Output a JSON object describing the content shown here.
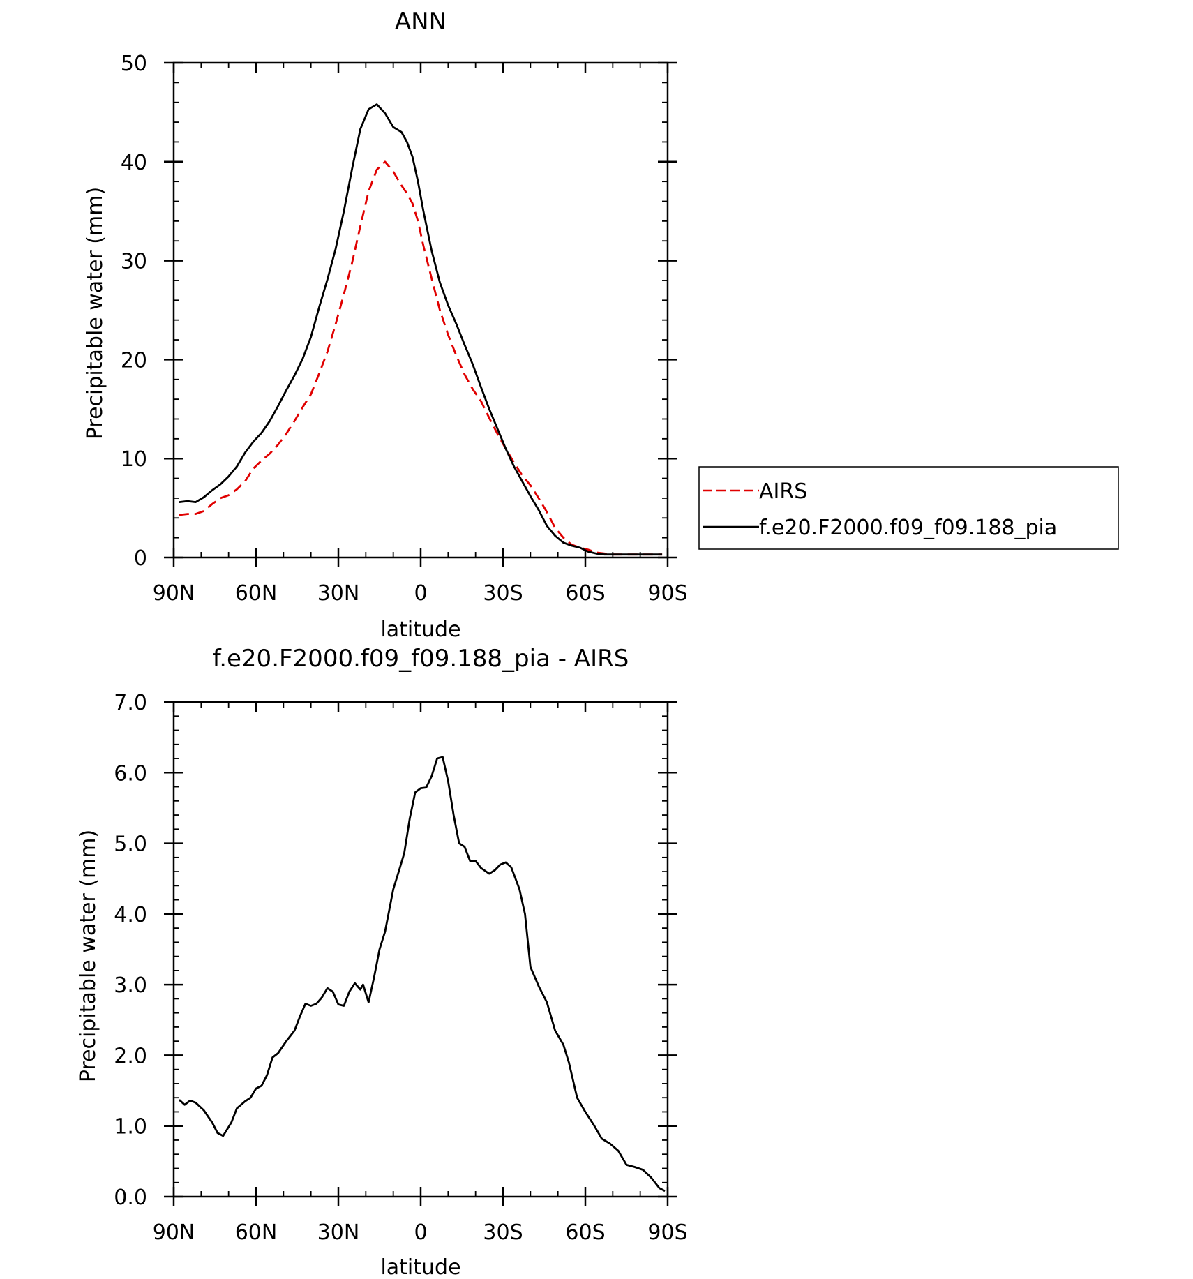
{
  "chart_data": [
    {
      "type": "line",
      "title": "ANN",
      "xlabel": "latitude",
      "ylabel": "Precipitable water (mm)",
      "xlim": [
        90,
        -90
      ],
      "ylim": [
        0,
        50
      ],
      "xticks": [
        90,
        60,
        30,
        0,
        -30,
        -60,
        -90
      ],
      "xtick_labels": [
        "90N",
        "60N",
        "30N",
        "0",
        "30S",
        "60S",
        "90S"
      ],
      "yticks": [
        0,
        10,
        20,
        30,
        40,
        50
      ],
      "ytick_labels": [
        "0",
        "10",
        "20",
        "30",
        "40",
        "50"
      ],
      "legend_position": "right",
      "series": [
        {
          "name": "AIRS",
          "color": "#e00000",
          "dash": true,
          "x": [
            88,
            85,
            82,
            79,
            76,
            73,
            70,
            67,
            64,
            61,
            58,
            55,
            52,
            49,
            46,
            43,
            40,
            37,
            34,
            31,
            28,
            25,
            22,
            19,
            16,
            13,
            10,
            7,
            5,
            3,
            1,
            -1,
            -4,
            -7,
            -10,
            -13,
            -16,
            -19,
            -22,
            -25,
            -28,
            -31,
            -34,
            -37,
            -40,
            -43,
            -46,
            -49,
            -52,
            -55,
            -58,
            -61,
            -64,
            -67,
            -70,
            -73,
            -76,
            -79,
            -82,
            -85,
            -88
          ],
          "y": [
            4.3,
            4.4,
            4.4,
            4.7,
            5.4,
            6.0,
            6.3,
            6.9,
            7.7,
            9.0,
            9.8,
            10.5,
            11.4,
            12.5,
            13.8,
            15.2,
            16.5,
            18.6,
            20.8,
            23.6,
            26.6,
            29.8,
            33.5,
            37.0,
            39.2,
            40.0,
            39.0,
            37.6,
            36.8,
            35.8,
            34.0,
            31.5,
            28.2,
            25.0,
            22.5,
            20.4,
            18.5,
            17.0,
            15.8,
            14.1,
            12.5,
            11.0,
            9.6,
            8.3,
            7.3,
            6.0,
            4.6,
            3.0,
            2.0,
            1.3,
            1.0,
            0.8,
            0.5,
            0.4,
            0.3,
            0.3,
            0.3,
            0.3,
            0.3,
            0.3,
            0.3
          ]
        },
        {
          "name": "f.e20.F2000.f09_f09.188_pia",
          "color": "#000000",
          "dash": false,
          "x": [
            88,
            85,
            82,
            79,
            76,
            73,
            70,
            67,
            64,
            61,
            58,
            55,
            52,
            49,
            46,
            43,
            40,
            37,
            34,
            31,
            28,
            25,
            22,
            19,
            16,
            13,
            10,
            7,
            5,
            3,
            1,
            -1,
            -4,
            -7,
            -10,
            -13,
            -16,
            -19,
            -22,
            -25,
            -28,
            -31,
            -34,
            -37,
            -40,
            -43,
            -46,
            -49,
            -52,
            -55,
            -58,
            -61,
            -64,
            -67,
            -70,
            -73,
            -76,
            -79,
            -82,
            -85,
            -88
          ],
          "y": [
            5.6,
            5.7,
            5.6,
            6.1,
            6.8,
            7.4,
            8.2,
            9.2,
            10.6,
            11.7,
            12.6,
            13.8,
            15.3,
            16.9,
            18.4,
            20.1,
            22.3,
            25.3,
            28.1,
            31.2,
            35.0,
            39.3,
            43.3,
            45.3,
            45.8,
            44.9,
            43.5,
            43.0,
            42.0,
            40.5,
            38.0,
            35.0,
            31.0,
            27.8,
            25.5,
            23.6,
            21.5,
            19.5,
            17.2,
            15.0,
            13.0,
            11.0,
            9.2,
            7.7,
            6.2,
            4.8,
            3.2,
            2.2,
            1.5,
            1.2,
            1.0,
            0.6,
            0.4,
            0.3,
            0.3,
            0.3,
            0.3,
            0.3,
            0.3,
            0.3,
            0.3
          ]
        }
      ]
    },
    {
      "type": "line",
      "title": "f.e20.F2000.f09_f09.188_pia - AIRS",
      "xlabel": "latitude",
      "ylabel": "Precipitable water (mm)",
      "xlim": [
        90,
        -90
      ],
      "ylim": [
        0,
        7
      ],
      "xticks": [
        90,
        60,
        30,
        0,
        -30,
        -60,
        -90
      ],
      "xtick_labels": [
        "90N",
        "60N",
        "30N",
        "0",
        "30S",
        "60S",
        "90S"
      ],
      "yticks": [
        0,
        1,
        2,
        3,
        4,
        5,
        6,
        7
      ],
      "ytick_labels": [
        "0.0",
        "1.0",
        "2.0",
        "3.0",
        "4.0",
        "5.0",
        "6.0",
        "7.0"
      ],
      "series": [
        {
          "color": "#000000",
          "x": [
            88,
            86,
            84,
            82,
            79,
            76,
            74,
            72,
            69,
            67,
            64,
            62,
            60,
            58,
            56,
            54,
            52,
            49,
            46,
            44,
            42,
            40,
            38,
            36,
            34,
            32,
            30,
            28,
            26,
            24,
            22,
            21,
            19,
            17,
            15,
            13,
            10,
            8,
            6,
            4,
            2,
            0,
            -2,
            -4,
            -6,
            -8,
            -10,
            -12,
            -14,
            -16,
            -18,
            -20,
            -22,
            -25,
            -27,
            -29,
            -31,
            -33,
            -36,
            -38,
            -40,
            -43,
            -46,
            -49,
            -52,
            -54,
            -57,
            -60,
            -63,
            -66,
            -69,
            -72,
            -75,
            -78,
            -81,
            -84,
            -87,
            -89
          ],
          "y": [
            1.37,
            1.3,
            1.36,
            1.33,
            1.22,
            1.05,
            0.9,
            0.86,
            1.05,
            1.25,
            1.35,
            1.4,
            1.53,
            1.57,
            1.72,
            1.97,
            2.03,
            2.2,
            2.35,
            2.55,
            2.73,
            2.7,
            2.73,
            2.82,
            2.95,
            2.9,
            2.72,
            2.7,
            2.9,
            3.02,
            2.93,
            3.0,
            2.75,
            3.1,
            3.5,
            3.75,
            4.35,
            4.6,
            4.86,
            5.35,
            5.72,
            5.78,
            5.79,
            5.95,
            6.2,
            6.22,
            5.88,
            5.4,
            5.0,
            4.95,
            4.75,
            4.75,
            4.65,
            4.57,
            4.62,
            4.7,
            4.73,
            4.66,
            4.35,
            4.0,
            3.25,
            2.98,
            2.75,
            2.35,
            2.15,
            1.9,
            1.4,
            1.2,
            1.02,
            0.82,
            0.75,
            0.65,
            0.45,
            0.42,
            0.38,
            0.27,
            0.12,
            0.08
          ]
        }
      ]
    }
  ]
}
